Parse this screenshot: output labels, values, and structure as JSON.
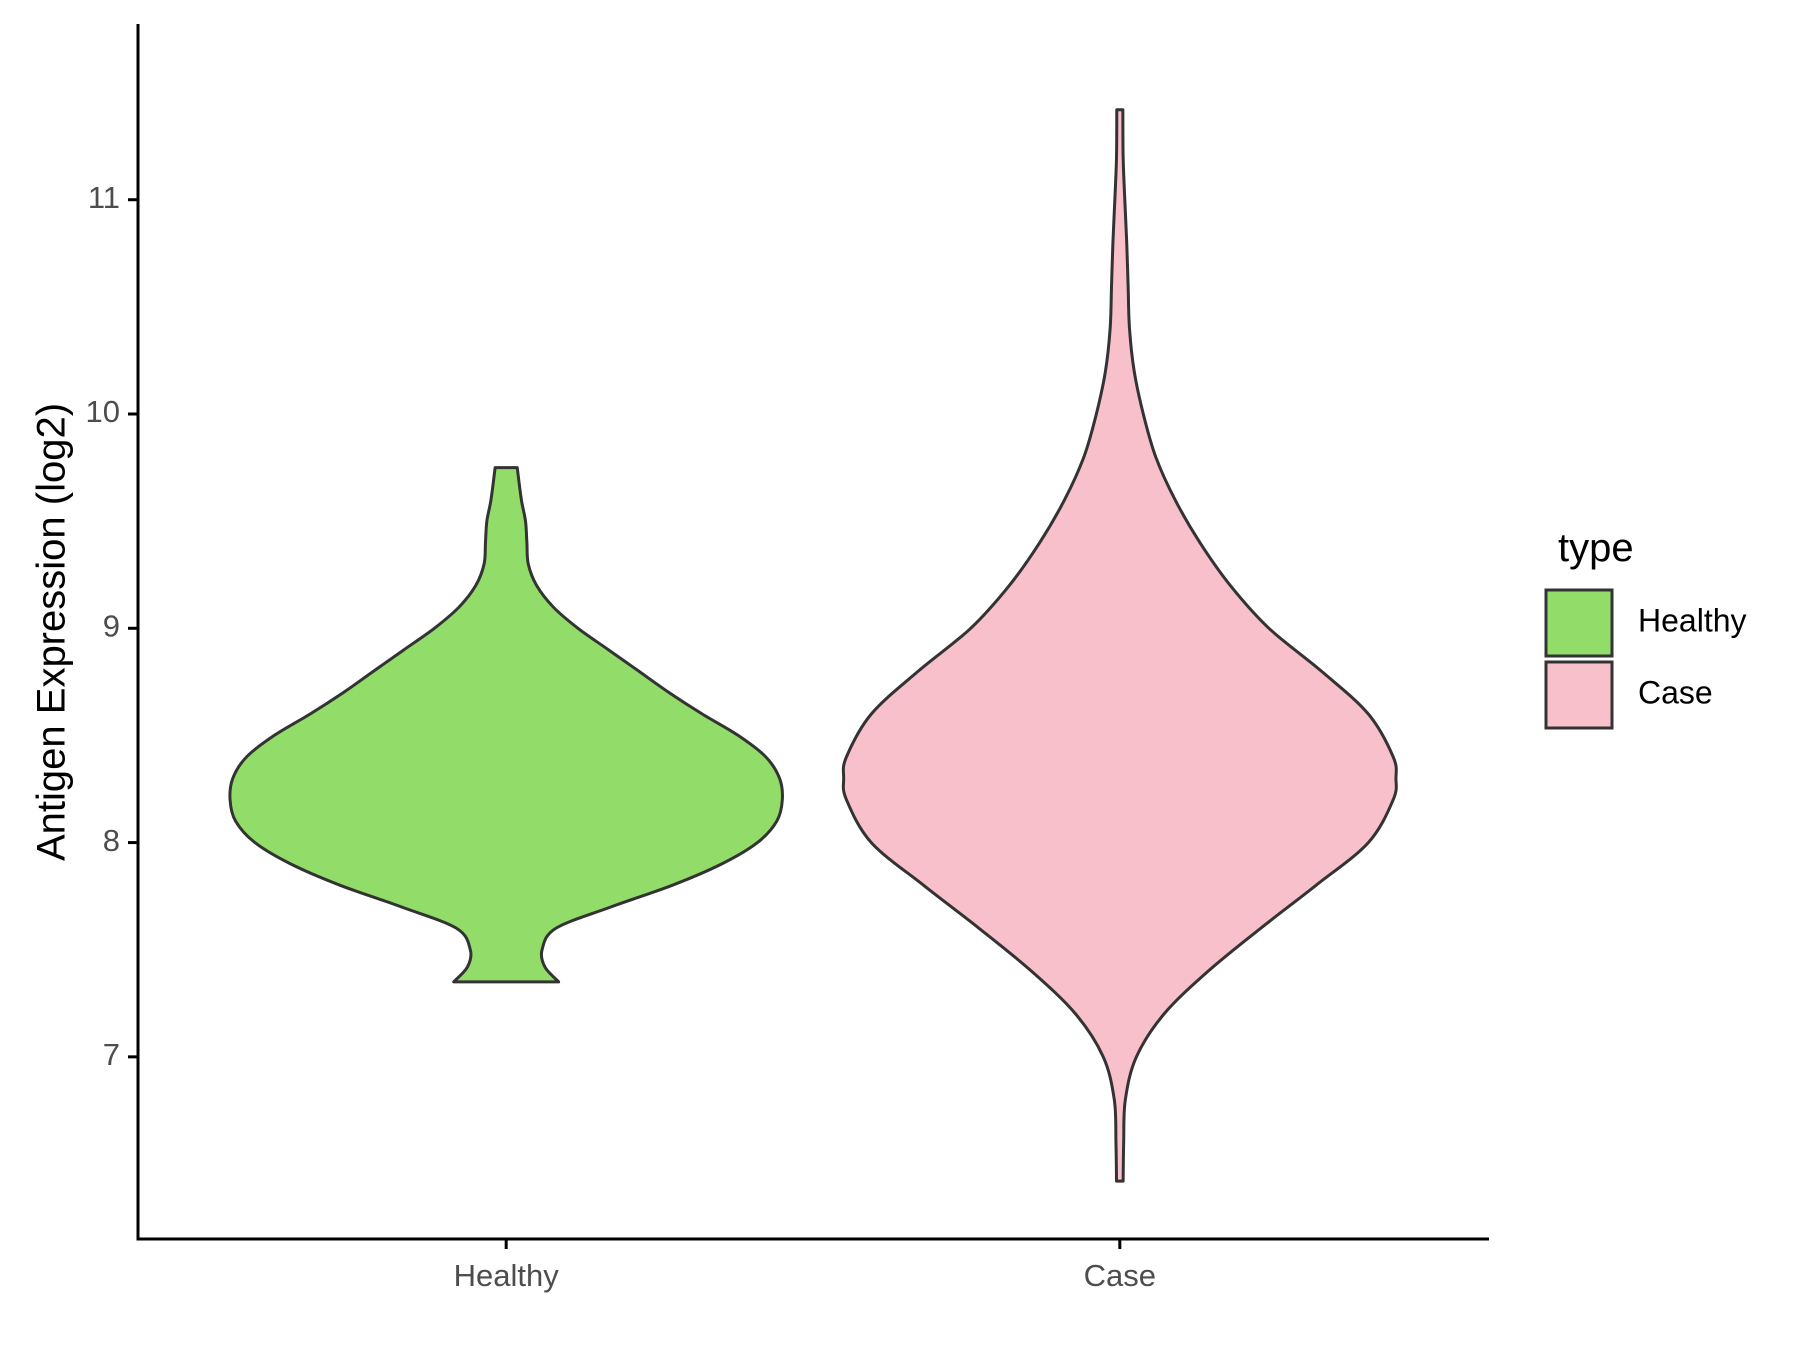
{
  "chart_data": {
    "type": "violin",
    "ylabel": "Antigen Expression (log2)",
    "xlabel": "",
    "categories": [
      "Healthy",
      "Case"
    ],
    "ylim": [
      6.15,
      11.82
    ],
    "yticks": [
      7,
      8,
      9,
      10,
      11
    ],
    "grid": false,
    "legend": {
      "title": "type",
      "position": "right",
      "entries": [
        {
          "label": "Healthy",
          "color": "#92dd69"
        },
        {
          "label": "Case",
          "color": "#f8c0cb"
        }
      ]
    },
    "outline_color": "#333333",
    "series": [
      {
        "category": "Healthy",
        "color": "#92dd69",
        "min": 7.35,
        "max": 9.75,
        "density_profile": [
          [
            7.35,
            0.19
          ],
          [
            7.42,
            0.14
          ],
          [
            7.5,
            0.13
          ],
          [
            7.6,
            0.18
          ],
          [
            7.7,
            0.38
          ],
          [
            7.8,
            0.6
          ],
          [
            7.9,
            0.78
          ],
          [
            8.0,
            0.91
          ],
          [
            8.1,
            0.98
          ],
          [
            8.2,
            1.0
          ],
          [
            8.3,
            0.99
          ],
          [
            8.4,
            0.94
          ],
          [
            8.5,
            0.84
          ],
          [
            8.6,
            0.71
          ],
          [
            8.7,
            0.59
          ],
          [
            8.8,
            0.48
          ],
          [
            8.9,
            0.37
          ],
          [
            9.0,
            0.26
          ],
          [
            9.1,
            0.17
          ],
          [
            9.2,
            0.11
          ],
          [
            9.3,
            0.08
          ],
          [
            9.4,
            0.075
          ],
          [
            9.5,
            0.07
          ],
          [
            9.6,
            0.055
          ],
          [
            9.75,
            0.04
          ]
        ]
      },
      {
        "category": "Case",
        "color": "#f8c0cb",
        "min": 6.42,
        "max": 11.42,
        "density_profile": [
          [
            6.42,
            0.012
          ],
          [
            6.6,
            0.014
          ],
          [
            6.8,
            0.02
          ],
          [
            7.0,
            0.06
          ],
          [
            7.2,
            0.16
          ],
          [
            7.4,
            0.32
          ],
          [
            7.6,
            0.51
          ],
          [
            7.8,
            0.71
          ],
          [
            8.0,
            0.9
          ],
          [
            8.2,
            0.99
          ],
          [
            8.3,
            1.0
          ],
          [
            8.4,
            0.99
          ],
          [
            8.6,
            0.9
          ],
          [
            8.8,
            0.73
          ],
          [
            9.0,
            0.54
          ],
          [
            9.2,
            0.4
          ],
          [
            9.4,
            0.29
          ],
          [
            9.6,
            0.2
          ],
          [
            9.8,
            0.13
          ],
          [
            10.0,
            0.085
          ],
          [
            10.2,
            0.052
          ],
          [
            10.4,
            0.035
          ],
          [
            10.6,
            0.03
          ],
          [
            10.8,
            0.025
          ],
          [
            11.0,
            0.018
          ],
          [
            11.2,
            0.012
          ],
          [
            11.42,
            0.011
          ]
        ]
      }
    ]
  }
}
